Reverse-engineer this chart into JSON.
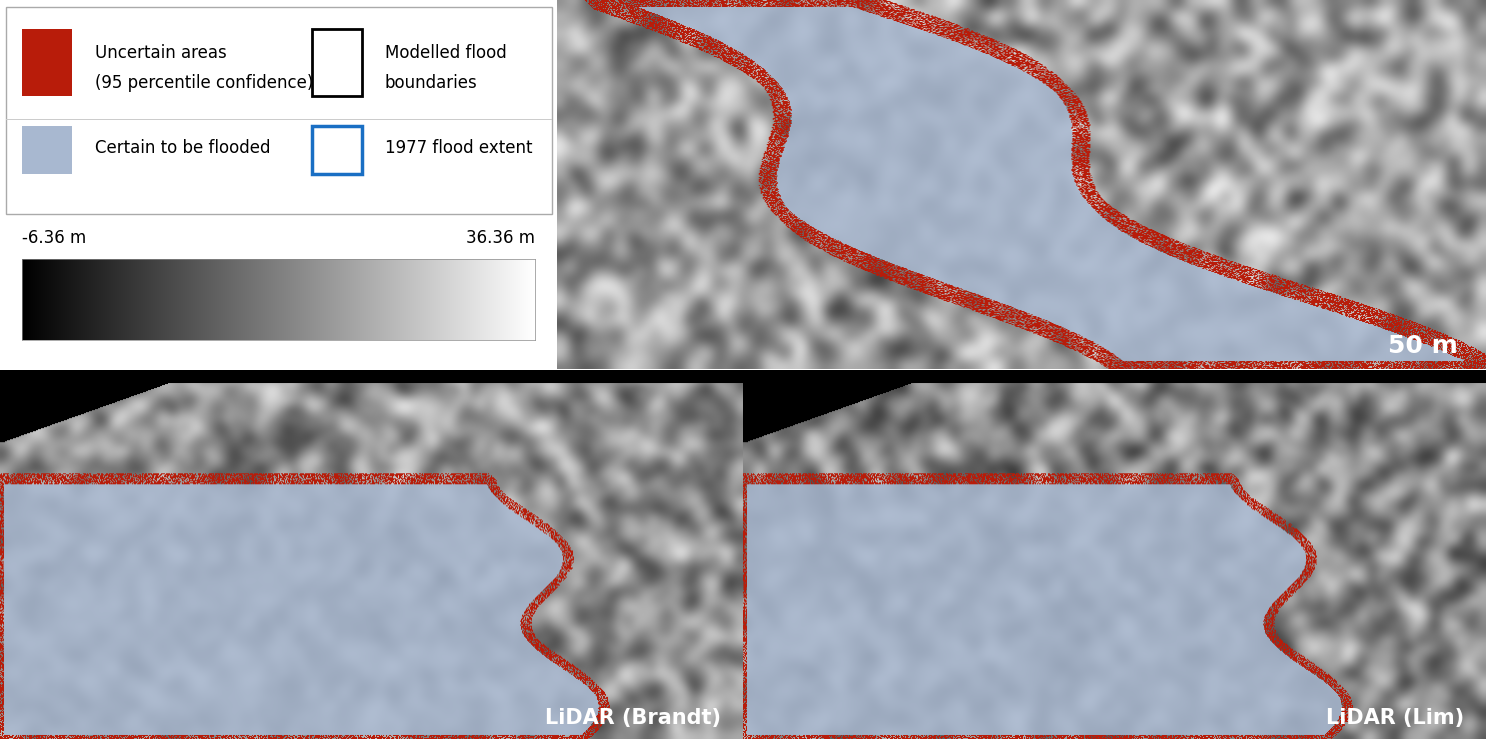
{
  "legend_row1_left_label1": "Uncertain areas",
  "legend_row1_left_label2": "(95 percentile confidence)",
  "legend_row1_right_label1": "Modelled flood",
  "legend_row1_right_label2": "boundaries",
  "legend_row2_left_label": "Certain to be flooded",
  "legend_row2_right_label": "1977 flood extent",
  "colorbar_min_label": "-6.36 m",
  "colorbar_max_label": "36.36 m",
  "label_top_right": "50 m",
  "label_bottom_left": "LiDAR (Brandt)",
  "label_bottom_right": "LiDAR (Lim)",
  "uncertain_color": "#b81c0a",
  "flood_color": "#a8b8d0",
  "boundary_color": "#000000",
  "extent_color": "#1a6fc4",
  "font_size_legend": 12,
  "font_size_label": 15,
  "font_size_cbar": 12
}
